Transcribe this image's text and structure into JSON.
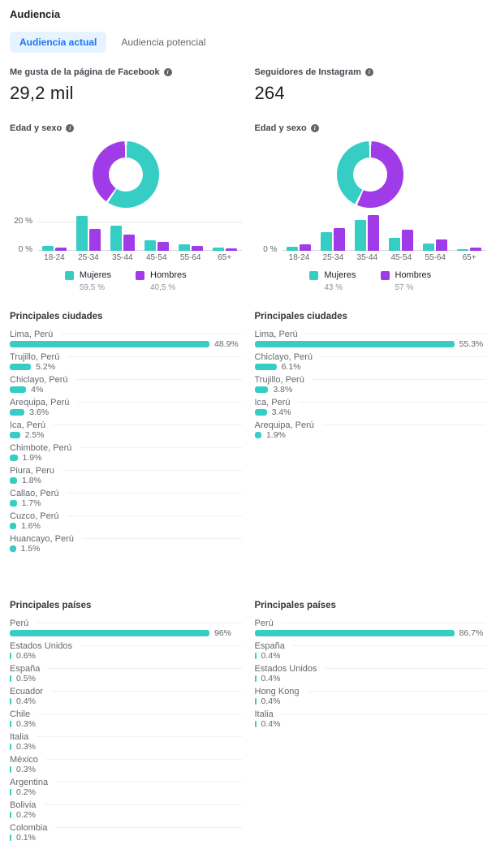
{
  "header": {
    "title": "Audiencia",
    "tabs": [
      {
        "label": "Audiencia actual",
        "active": true
      },
      {
        "label": "Audiencia potencial",
        "active": false
      }
    ]
  },
  "colors": {
    "accent_blue": "#1877F2",
    "tab_active_bg": "#E7F3FF",
    "teal": "#36CDC4",
    "purple": "#A03BE8",
    "text_dark": "#1C1E21",
    "text_gray": "#65676B",
    "gridline": "#E4E6EB"
  },
  "columns": [
    {
      "id": "facebook",
      "metric_label": "Me gusta de la página de Facebook",
      "metric_value": "29,2 mil",
      "age_gender_title": "Edad y sexo",
      "donut": {
        "type": "donut",
        "segments": [
          {
            "name": "Mujeres",
            "pct": 59.5,
            "color": "teal"
          },
          {
            "name": "Hombres",
            "pct": 40.5,
            "color": "purple"
          }
        ]
      },
      "chart_data": {
        "type": "grouped_bar",
        "categories": [
          "18-24",
          "25-34",
          "35-44",
          "45-54",
          "55-64",
          "65+"
        ],
        "series": [
          {
            "name": "Mujeres",
            "color": "teal",
            "values": [
              3.5,
              24.5,
              17.5,
              7.5,
              4.5,
              2
            ]
          },
          {
            "name": "Hombres",
            "color": "purple",
            "values": [
              2.5,
              15,
              11.5,
              6.5,
              3.5,
              1.5
            ]
          }
        ],
        "ylim": [
          0,
          26
        ],
        "yticks": [
          {
            "label": "20 %",
            "value": 20
          },
          {
            "label": "0 %",
            "value": 0
          }
        ]
      },
      "legend": [
        {
          "name": "Mujeres",
          "pct_label": "59,5 %",
          "color": "teal"
        },
        {
          "name": "Hombres",
          "pct_label": "40,5 %",
          "color": "purple"
        }
      ],
      "cities": {
        "title": "Principales ciudades",
        "items": [
          {
            "label": "Lima, Perú",
            "value": 48.9,
            "pct_label": "48.9%"
          },
          {
            "label": "Trujillo, Perú",
            "value": 5.2,
            "pct_label": "5.2%"
          },
          {
            "label": "Chiclayo, Perú",
            "value": 4,
            "pct_label": "4%"
          },
          {
            "label": "Arequipa, Perú",
            "value": 3.6,
            "pct_label": "3.6%"
          },
          {
            "label": "Ica, Perú",
            "value": 2.5,
            "pct_label": "2.5%"
          },
          {
            "label": "Chimbote, Perú",
            "value": 1.9,
            "pct_label": "1.9%"
          },
          {
            "label": "Piura, Peru",
            "value": 1.8,
            "pct_label": "1.8%"
          },
          {
            "label": "Callao, Perú",
            "value": 1.7,
            "pct_label": "1.7%"
          },
          {
            "label": "Cuzco, Perú",
            "value": 1.6,
            "pct_label": "1.6%"
          },
          {
            "label": "Huancayo, Perú",
            "value": 1.5,
            "pct_label": "1.5%"
          }
        ]
      },
      "countries": {
        "title": "Principales países",
        "items": [
          {
            "label": "Perú",
            "value": 96,
            "pct_label": "96%"
          },
          {
            "label": "Estados Unidos",
            "value": 0.6,
            "pct_label": "0.6%"
          },
          {
            "label": "España",
            "value": 0.5,
            "pct_label": "0.5%"
          },
          {
            "label": "Ecuador",
            "value": 0.4,
            "pct_label": "0.4%"
          },
          {
            "label": "Chile",
            "value": 0.3,
            "pct_label": "0.3%"
          },
          {
            "label": "Italia",
            "value": 0.3,
            "pct_label": "0.3%"
          },
          {
            "label": "México",
            "value": 0.3,
            "pct_label": "0.3%"
          },
          {
            "label": "Argentina",
            "value": 0.2,
            "pct_label": "0.2%"
          },
          {
            "label": "Bolivia",
            "value": 0.2,
            "pct_label": "0.2%"
          },
          {
            "label": "Colombia",
            "value": 0.1,
            "pct_label": "0.1%"
          }
        ]
      }
    },
    {
      "id": "instagram",
      "metric_label": "Seguidores de Instagram",
      "metric_value": "264",
      "age_gender_title": "Edad y sexo",
      "donut": {
        "type": "donut",
        "segments": [
          {
            "name": "Hombres",
            "pct": 57,
            "color": "purple"
          },
          {
            "name": "Mujeres",
            "pct": 43,
            "color": "teal"
          }
        ]
      },
      "chart_data": {
        "type": "grouped_bar",
        "categories": [
          "18-24",
          "25-34",
          "35-44",
          "45-54",
          "55-64",
          "65+"
        ],
        "series": [
          {
            "name": "Mujeres",
            "color": "teal",
            "values": [
              2.5,
              10.5,
              17.5,
              7.5,
              4,
              1
            ]
          },
          {
            "name": "Hombres",
            "color": "purple",
            "values": [
              3.5,
              13,
              20,
              12,
              6.5,
              2
            ]
          }
        ],
        "ylim": [
          0,
          21
        ],
        "yticks": [
          {
            "label": "0 %",
            "value": 0
          }
        ]
      },
      "legend": [
        {
          "name": "Mujeres",
          "pct_label": "43 %",
          "color": "teal"
        },
        {
          "name": "Hombres",
          "pct_label": "57 %",
          "color": "purple"
        }
      ],
      "cities": {
        "title": "Principales ciudades",
        "items": [
          {
            "label": "Lima, Perú",
            "value": 55.3,
            "pct_label": "55.3%"
          },
          {
            "label": "Chiclayo, Perú",
            "value": 6.1,
            "pct_label": "6.1%"
          },
          {
            "label": "Trujillo, Perú",
            "value": 3.8,
            "pct_label": "3.8%"
          },
          {
            "label": "Ica, Perú",
            "value": 3.4,
            "pct_label": "3.4%"
          },
          {
            "label": "Arequipa, Perú",
            "value": 1.9,
            "pct_label": "1.9%"
          }
        ]
      },
      "countries": {
        "title": "Principales países",
        "items": [
          {
            "label": "Perú",
            "value": 86.7,
            "pct_label": "86.7%"
          },
          {
            "label": "España",
            "value": 0.4,
            "pct_label": "0.4%"
          },
          {
            "label": "Estados Unidos",
            "value": 0.4,
            "pct_label": "0.4%"
          },
          {
            "label": "Hong Kong",
            "value": 0.4,
            "pct_label": "0.4%"
          },
          {
            "label": "Italia",
            "value": 0.4,
            "pct_label": "0.4%"
          }
        ]
      }
    }
  ]
}
